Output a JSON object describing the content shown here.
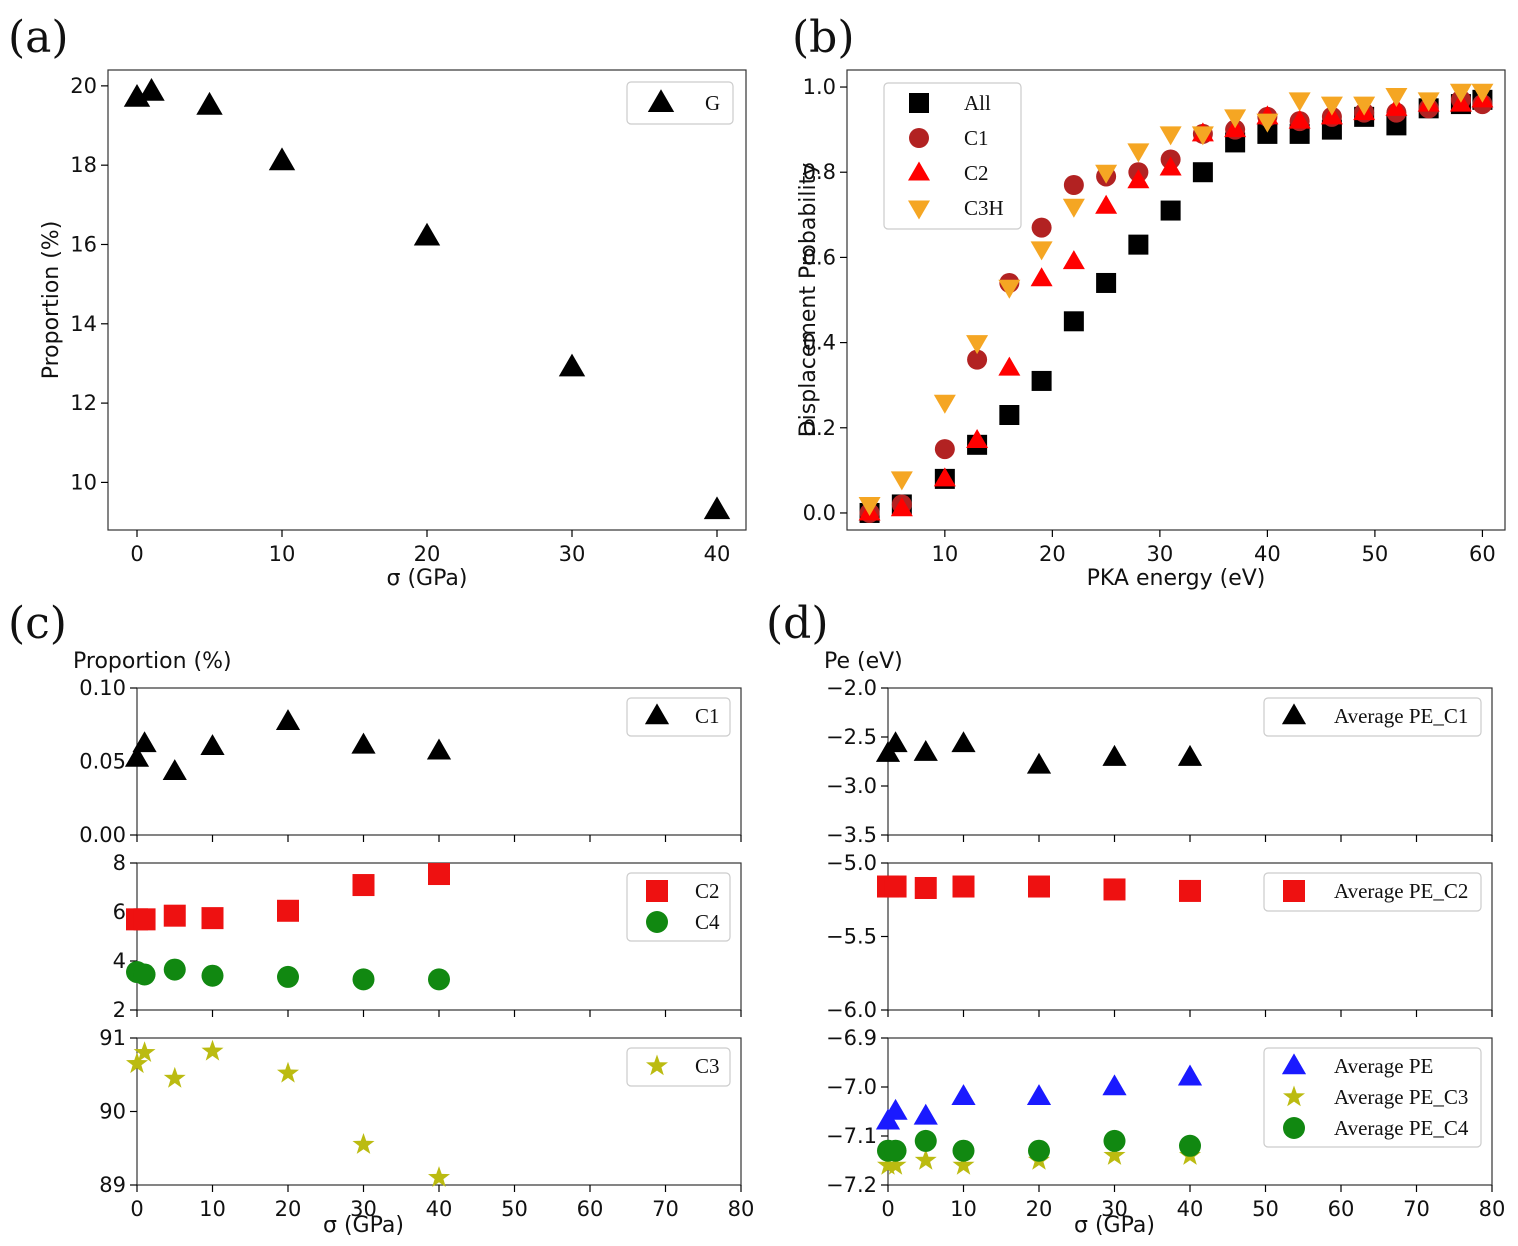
{
  "chart_data": [
    {
      "panel": "(a)",
      "type": "scatter",
      "xlabel": "σ (GPa)",
      "ylabel": "Proportion (%)",
      "xlim": [
        -2,
        42
      ],
      "ylim": [
        8.8,
        20.4
      ],
      "xticks": [
        0,
        10,
        20,
        30,
        40
      ],
      "yticks": [
        10,
        12,
        14,
        16,
        18,
        20
      ],
      "series": [
        {
          "name": "G",
          "marker": "triangle-up",
          "color": "#000000",
          "x": [
            0,
            1,
            5,
            10,
            20,
            30,
            40
          ],
          "y": [
            19.7,
            19.85,
            19.5,
            18.1,
            16.2,
            12.9,
            9.3
          ]
        }
      ]
    },
    {
      "panel": "(b)",
      "type": "scatter",
      "xlabel": "PKA energy (eV)",
      "ylabel": "Displacement Probability",
      "xlim": [
        0.9,
        62.1
      ],
      "ylim": [
        -0.04,
        1.04
      ],
      "xticks": [
        10,
        20,
        30,
        40,
        50,
        60
      ],
      "yticks": [
        "0.0",
        "0.2",
        "0.4",
        "0.6",
        "0.8",
        "1.0"
      ],
      "series": [
        {
          "name": "All",
          "marker": "square",
          "color": "#000000",
          "x": [
            3,
            6,
            10,
            13,
            16,
            19,
            22,
            25,
            28,
            31,
            34,
            37,
            40,
            43,
            46,
            49,
            52,
            55,
            58,
            60
          ],
          "y": [
            0.0,
            0.02,
            0.08,
            0.16,
            0.23,
            0.31,
            0.45,
            0.54,
            0.63,
            0.71,
            0.8,
            0.87,
            0.89,
            0.89,
            0.9,
            0.93,
            0.91,
            0.95,
            0.96,
            0.97
          ]
        },
        {
          "name": "C1",
          "marker": "circle",
          "color": "#b22222",
          "x": [
            3,
            6,
            10,
            13,
            16,
            19,
            22,
            25,
            28,
            31,
            34,
            37,
            40,
            43,
            46,
            49,
            52,
            55,
            58,
            60
          ],
          "y": [
            0.0,
            0.02,
            0.15,
            0.36,
            0.54,
            0.67,
            0.77,
            0.79,
            0.8,
            0.83,
            0.89,
            0.9,
            0.93,
            0.92,
            0.93,
            0.94,
            0.94,
            0.95,
            0.97,
            0.96
          ]
        },
        {
          "name": "C2",
          "marker": "triangle-up",
          "color": "#ff0000",
          "x": [
            3,
            6,
            10,
            13,
            16,
            19,
            22,
            25,
            28,
            31,
            34,
            37,
            40,
            43,
            46,
            49,
            52,
            55,
            58,
            60
          ],
          "y": [
            0.0,
            0.01,
            0.08,
            0.17,
            0.34,
            0.55,
            0.59,
            0.72,
            0.78,
            0.81,
            0.89,
            0.9,
            0.93,
            0.92,
            0.93,
            0.94,
            0.95,
            0.96,
            0.96,
            0.97
          ]
        },
        {
          "name": "C3H",
          "marker": "triangle-down",
          "color": "#f5a623",
          "x": [
            3,
            6,
            10,
            13,
            16,
            19,
            22,
            25,
            28,
            31,
            34,
            37,
            40,
            43,
            46,
            49,
            52,
            55,
            58,
            60
          ],
          "y": [
            0.02,
            0.08,
            0.26,
            0.4,
            0.53,
            0.62,
            0.72,
            0.8,
            0.85,
            0.89,
            0.89,
            0.93,
            0.92,
            0.97,
            0.96,
            0.96,
            0.98,
            0.97,
            0.99,
            0.99
          ]
        }
      ]
    },
    {
      "panel": "(c)",
      "type": "scatter",
      "ylabel": "Proportion (%)",
      "xlabel": "σ (GPa)",
      "xlim": [
        0,
        80
      ],
      "xticks": [
        0,
        10,
        20,
        30,
        40,
        50,
        60,
        70,
        80
      ],
      "subplots": [
        {
          "ylim": [
            0.0,
            0.1
          ],
          "yticks": [
            "0.00",
            "0.05",
            "0.10"
          ],
          "series": [
            {
              "name": "C1",
              "marker": "triangle-up",
              "color": "#000000",
              "x": [
                0,
                1,
                5,
                10,
                20,
                30,
                40
              ],
              "y": [
                0.052,
                0.062,
                0.043,
                0.06,
                0.077,
                0.061,
                0.057
              ]
            }
          ]
        },
        {
          "ylim": [
            2,
            8
          ],
          "yticks": [
            "2",
            "4",
            "6",
            "8"
          ],
          "series": [
            {
              "name": "C2",
              "marker": "square",
              "color": "#ee1111",
              "x": [
                0,
                1,
                5,
                10,
                20,
                30,
                40
              ],
              "y": [
                5.7,
                5.7,
                5.85,
                5.75,
                6.05,
                7.1,
                7.55
              ]
            },
            {
              "name": "C4",
              "marker": "circle",
              "color": "#118811",
              "x": [
                0,
                1,
                5,
                10,
                20,
                30,
                40
              ],
              "y": [
                3.55,
                3.45,
                3.65,
                3.4,
                3.35,
                3.25,
                3.25
              ]
            }
          ]
        },
        {
          "ylim": [
            89,
            91
          ],
          "yticks": [
            "89",
            "90",
            "91"
          ],
          "series": [
            {
              "name": "C3",
              "marker": "star",
              "color": "#bbbb11",
              "x": [
                0,
                1,
                5,
                10,
                20,
                30,
                40
              ],
              "y": [
                90.65,
                90.8,
                90.45,
                90.82,
                90.52,
                89.55,
                89.1
              ]
            }
          ]
        }
      ]
    },
    {
      "panel": "(d)",
      "type": "scatter",
      "ylabel": "Pe (eV)",
      "xlabel": "σ (GPa)",
      "xlim": [
        0,
        80
      ],
      "xticks": [
        0,
        10,
        20,
        30,
        40,
        50,
        60,
        70,
        80
      ],
      "subplots": [
        {
          "ylim": [
            -3.5,
            -2.0
          ],
          "yticks": [
            "−3.5",
            "−3.0",
            "−2.5",
            "−2.0"
          ],
          "series": [
            {
              "name": "Average PE_C1",
              "marker": "triangle-up",
              "color": "#000000",
              "x": [
                0,
                1,
                5,
                10,
                20,
                30,
                40
              ],
              "y": [
                -2.67,
                -2.57,
                -2.66,
                -2.57,
                -2.79,
                -2.71,
                -2.71
              ]
            }
          ]
        },
        {
          "ylim": [
            -6.0,
            -5.0
          ],
          "yticks": [
            "−6.0",
            "−5.5",
            "−5.0"
          ],
          "series": [
            {
              "name": "Average PE_C2",
              "marker": "square",
              "color": "#ee1111",
              "x": [
                0,
                1,
                5,
                10,
                20,
                30,
                40
              ],
              "y": [
                -5.16,
                -5.16,
                -5.17,
                -5.16,
                -5.16,
                -5.18,
                -5.19
              ]
            }
          ]
        },
        {
          "ylim": [
            -7.2,
            -6.9
          ],
          "yticks": [
            "−7.2",
            "−7.1",
            "−7.0",
            "−6.9"
          ],
          "series": [
            {
              "name": "Average PE",
              "marker": "triangle-up",
              "color": "#1a1aff",
              "x": [
                0,
                1,
                5,
                10,
                20,
                30,
                40
              ],
              "y": [
                -7.07,
                -7.05,
                -7.06,
                -7.02,
                -7.02,
                -7.0,
                -6.98
              ]
            },
            {
              "name": "Average PE_C3",
              "marker": "star",
              "color": "#bbbb11",
              "x": [
                0,
                1,
                5,
                10,
                20,
                30,
                40
              ],
              "y": [
                -7.16,
                -7.16,
                -7.15,
                -7.16,
                -7.15,
                -7.14,
                -7.14
              ]
            },
            {
              "name": "Average PE_C4",
              "marker": "circle",
              "color": "#118811",
              "x": [
                0,
                1,
                5,
                10,
                20,
                30,
                40
              ],
              "y": [
                -7.13,
                -7.13,
                -7.11,
                -7.13,
                -7.13,
                -7.11,
                -7.12
              ]
            }
          ]
        }
      ]
    }
  ]
}
